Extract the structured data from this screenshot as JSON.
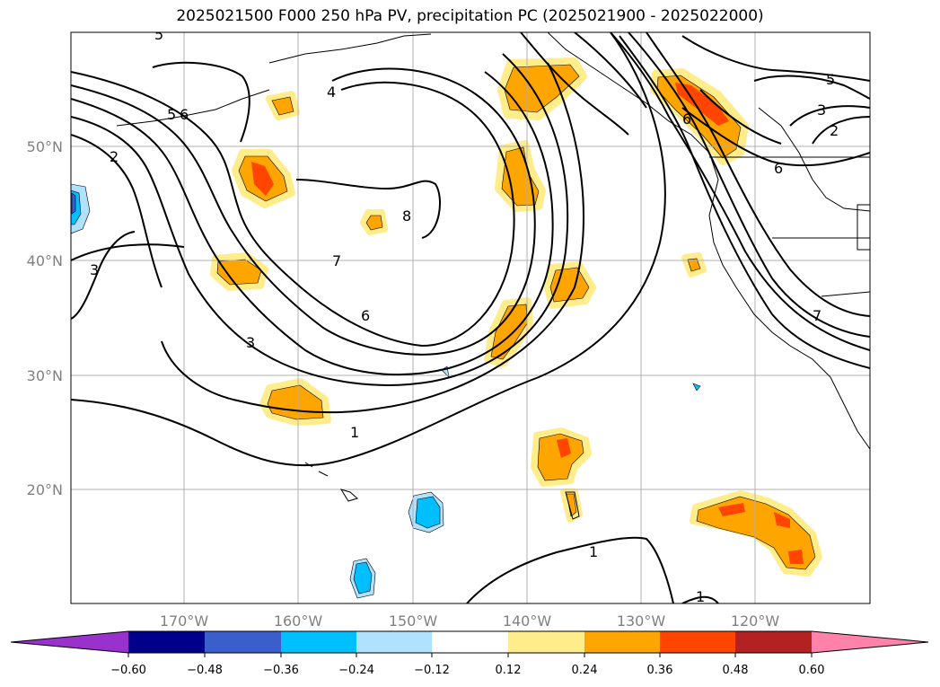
{
  "title": "2025021500 F000 250 hPa PV, precipitation PC (2025021900 - 2025022000)",
  "lon_labels": [
    "170°W",
    "160°W",
    "150°W",
    "140°W",
    "130°W",
    "120°W"
  ],
  "lat_labels": [
    "50°N",
    "40°N",
    "30°N",
    "20°N"
  ],
  "contour_labels": [
    "5",
    "4",
    "5",
    "6",
    "2",
    "3",
    "8",
    "7",
    "6",
    "3",
    "1",
    "1",
    "1",
    "5",
    "3",
    "2",
    "6",
    "7",
    "6"
  ],
  "colorbar": {
    "ticks": [
      "−0.60",
      "−0.48",
      "−0.36",
      "−0.24",
      "−0.12",
      "0.12",
      "0.24",
      "0.36",
      "0.48",
      "0.60"
    ],
    "colors": [
      "#9932cc",
      "#00008b",
      "#3a5fcd",
      "#00bfff",
      "#b0e2ff",
      "#ffffff",
      "#ffec8b",
      "#ffa500",
      "#ff4500",
      "#b22222",
      "#ff82ab"
    ]
  },
  "legend_colors": {
    "orange": "#ffa500",
    "yellow": "#ffec8b",
    "red": "#ff4500",
    "blue": "#00bfff",
    "lightblue": "#b0e2ff"
  }
}
